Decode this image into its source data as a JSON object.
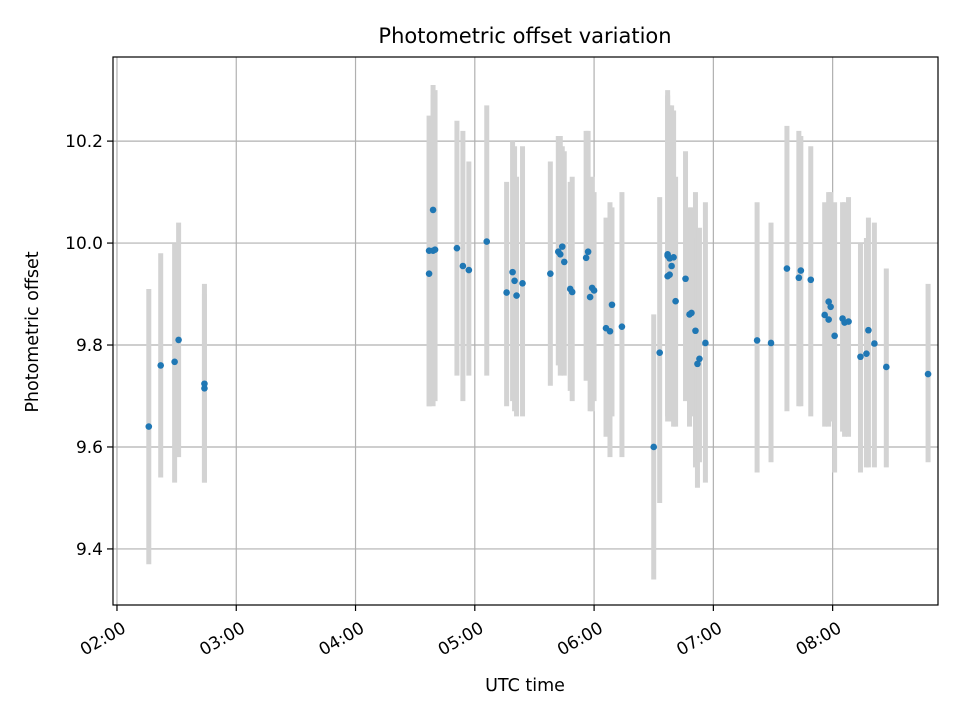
{
  "chart_data": {
    "type": "scatter",
    "title": "Photometric offset variation",
    "xlabel": "UTC time",
    "ylabel": "Photometric offset",
    "x_unit": "UTC hh:mm",
    "xlim": [
      "01:58",
      "08:53"
    ],
    "ylim": [
      9.29,
      10.365
    ],
    "x_ticks": [
      "02:00",
      "03:00",
      "04:00",
      "05:00",
      "06:00",
      "07:00",
      "08:00"
    ],
    "y_ticks": [
      "9.4",
      "9.6",
      "9.8",
      "10.0",
      "10.2"
    ],
    "grid": true,
    "colors": {
      "points": "#1f77b4",
      "error_bars": "#d3d3d3",
      "grid": "#b0b0b0"
    },
    "series": [
      {
        "x": [
          "02:16",
          "02:22",
          "02:29",
          "02:31",
          "02:44",
          "02:44",
          "04:37",
          "04:37",
          "04:39",
          "04:39",
          "04:40",
          "04:51",
          "04:54",
          "04:57",
          "05:06",
          "05:16",
          "05:19",
          "05:20",
          "05:21",
          "05:24",
          "05:38",
          "05:42",
          "05:43",
          "05:44",
          "05:45",
          "05:48",
          "05:49",
          "05:56",
          "05:57",
          "05:58",
          "05:59",
          "06:00",
          "06:06",
          "06:08",
          "06:09",
          "06:14",
          "06:30",
          "06:33",
          "06:37",
          "06:37",
          "06:37",
          "06:38",
          "06:38",
          "06:39",
          "06:40",
          "06:41",
          "06:46",
          "06:48",
          "06:49",
          "06:51",
          "06:52",
          "06:53",
          "06:56",
          "07:22",
          "07:29",
          "07:37",
          "07:43",
          "07:44",
          "07:49",
          "07:56",
          "07:58",
          "07:58",
          "07:59",
          "08:01",
          "08:05",
          "08:06",
          "08:08",
          "08:14",
          "08:17",
          "08:18",
          "08:21",
          "08:27",
          "08:48"
        ],
        "y": [
          9.64,
          9.76,
          9.767,
          9.81,
          9.715,
          9.724,
          9.94,
          9.985,
          10.065,
          9.985,
          9.987,
          9.99,
          9.955,
          9.947,
          10.003,
          9.903,
          9.943,
          9.926,
          9.897,
          9.921,
          9.94,
          9.983,
          9.978,
          9.993,
          9.963,
          9.91,
          9.904,
          9.971,
          9.983,
          9.894,
          9.912,
          9.907,
          9.833,
          9.827,
          9.879,
          9.836,
          9.6,
          9.785,
          9.978,
          9.975,
          9.935,
          9.97,
          9.938,
          9.955,
          9.972,
          9.886,
          9.93,
          9.86,
          9.863,
          9.828,
          9.763,
          9.773,
          9.804,
          9.809,
          9.804,
          9.95,
          9.932,
          9.946,
          9.928,
          9.859,
          9.85,
          9.885,
          9.875,
          9.818,
          9.852,
          9.844,
          9.846,
          9.777,
          9.783,
          9.829,
          9.803,
          9.757,
          9.743
        ],
        "err_low": [
          9.37,
          9.54,
          9.53,
          9.58,
          9.53,
          9.53,
          9.68,
          9.68,
          9.68,
          9.69,
          9.69,
          9.74,
          9.69,
          9.74,
          9.74,
          9.68,
          9.69,
          9.67,
          9.66,
          9.66,
          9.72,
          9.76,
          9.74,
          9.76,
          9.74,
          9.71,
          9.69,
          9.73,
          9.74,
          9.67,
          9.67,
          9.69,
          9.62,
          9.58,
          9.66,
          9.58,
          9.34,
          9.49,
          9.66,
          9.66,
          9.65,
          9.65,
          9.65,
          9.66,
          9.64,
          9.64,
          9.69,
          9.64,
          9.66,
          9.56,
          9.52,
          9.57,
          9.53,
          9.55,
          9.57,
          9.67,
          9.68,
          9.68,
          9.66,
          9.64,
          9.64,
          9.67,
          9.65,
          9.55,
          9.63,
          9.62,
          9.62,
          9.55,
          9.56,
          9.56,
          9.56,
          9.56,
          9.57
        ],
        "err_high": [
          9.91,
          9.98,
          10.0,
          10.04,
          9.9,
          9.92,
          10.2,
          10.25,
          10.31,
          10.29,
          10.3,
          10.24,
          10.22,
          10.16,
          10.27,
          10.12,
          10.2,
          10.19,
          10.13,
          10.19,
          10.16,
          10.21,
          10.21,
          10.19,
          10.18,
          10.12,
          10.13,
          10.22,
          10.22,
          10.12,
          10.13,
          10.1,
          10.05,
          10.08,
          10.07,
          10.1,
          9.86,
          10.09,
          10.3,
          10.29,
          10.21,
          10.27,
          10.23,
          10.27,
          10.26,
          10.13,
          10.18,
          10.07,
          10.07,
          10.1,
          10.01,
          10.03,
          10.08,
          10.08,
          10.04,
          10.23,
          10.22,
          10.21,
          10.19,
          10.08,
          10.08,
          10.1,
          10.1,
          10.08,
          10.08,
          10.08,
          10.09,
          10.0,
          10.01,
          10.05,
          10.04,
          9.95,
          9.92
        ]
      }
    ]
  }
}
